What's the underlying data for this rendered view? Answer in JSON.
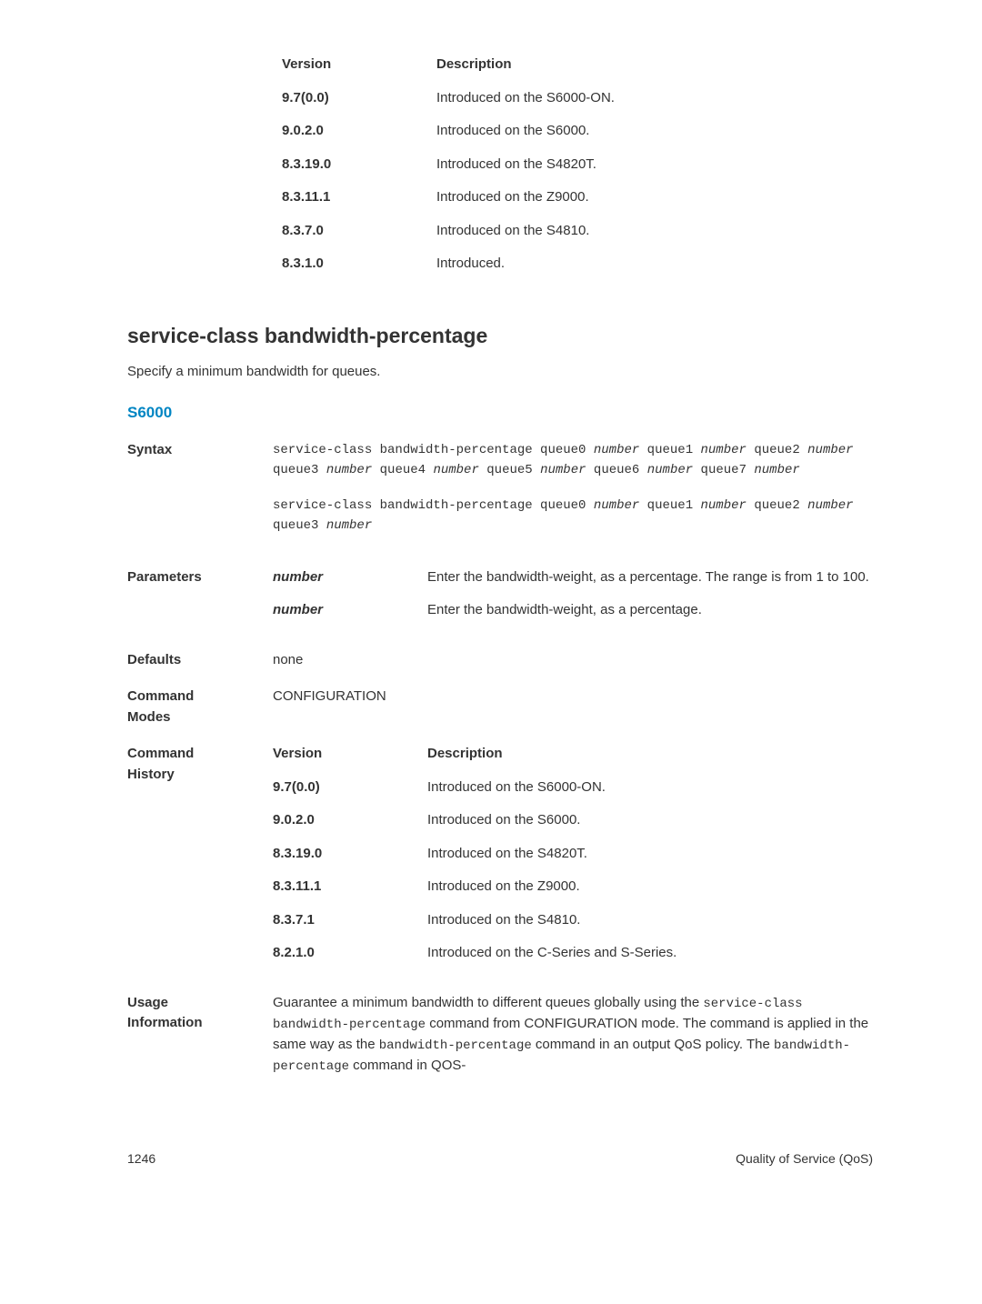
{
  "top_version_table": {
    "header": {
      "col1": "Version",
      "col2": "Description"
    },
    "rows": [
      {
        "version": "9.7(0.0)",
        "desc": "Introduced on the S6000-ON."
      },
      {
        "version": "9.0.2.0",
        "desc": "Introduced on the S6000."
      },
      {
        "version": "8.3.19.0",
        "desc": "Introduced on the S4820T."
      },
      {
        "version": "8.3.11.1",
        "desc": "Introduced on the Z9000."
      },
      {
        "version": "8.3.7.0",
        "desc": "Introduced on the S4810."
      },
      {
        "version": "8.3.1.0",
        "desc": "Introduced."
      }
    ]
  },
  "section": {
    "title": "service-class bandwidth-percentage",
    "desc": "Specify a minimum bandwidth for queues.",
    "subhead": "S6000"
  },
  "labels": {
    "syntax": "Syntax",
    "parameters": "Parameters",
    "defaults": "Defaults",
    "command_modes": "Command Modes",
    "command_history": "Command History",
    "usage_information": "Usage Information"
  },
  "syntax": {
    "block1_parts": [
      {
        "t": "service-class bandwidth-percentage queue0 ",
        "i": false
      },
      {
        "t": "number",
        "i": true
      },
      {
        "t": " queue1 ",
        "i": false
      },
      {
        "t": "number",
        "i": true
      },
      {
        "t": " queue2 ",
        "i": false
      },
      {
        "t": "number",
        "i": true
      },
      {
        "t": " queue3 ",
        "i": false
      },
      {
        "t": "number",
        "i": true
      },
      {
        "t": " queue4 ",
        "i": false
      },
      {
        "t": "number",
        "i": true
      },
      {
        "t": " queue5 ",
        "i": false
      },
      {
        "t": "number",
        "i": true
      },
      {
        "t": " queue6 ",
        "i": false
      },
      {
        "t": "number",
        "i": true
      },
      {
        "t": " queue7 ",
        "i": false
      },
      {
        "t": "number",
        "i": true
      }
    ],
    "block2_parts": [
      {
        "t": "service-class bandwidth-percentage queue0 ",
        "i": false
      },
      {
        "t": "number",
        "i": true
      },
      {
        "t": " queue1 ",
        "i": false
      },
      {
        "t": "number",
        "i": true
      },
      {
        "t": " queue2 ",
        "i": false
      },
      {
        "t": "number",
        "i": true
      },
      {
        "t": " queue3 ",
        "i": false
      },
      {
        "t": "number",
        "i": true
      }
    ]
  },
  "parameters": [
    {
      "name": "number",
      "desc": "Enter the bandwidth-weight, as a percentage. The range is from 1 to 100."
    },
    {
      "name": "number",
      "desc": "Enter the bandwidth-weight, as a percentage."
    }
  ],
  "defaults": "none",
  "command_modes": "CONFIGURATION",
  "cmd_history": {
    "header": {
      "col1": "Version",
      "col2": "Description"
    },
    "rows": [
      {
        "version": "9.7(0.0)",
        "desc": "Introduced on the S6000-ON."
      },
      {
        "version": "9.0.2.0",
        "desc": "Introduced on the S6000."
      },
      {
        "version": "8.3.19.0",
        "desc": "Introduced on the S4820T."
      },
      {
        "version": "8.3.11.1",
        "desc": "Introduced on the Z9000."
      },
      {
        "version": "8.3.7.1",
        "desc": "Introduced on the S4810."
      },
      {
        "version": "8.2.1.0",
        "desc": "Introduced on the C-Series and S-Series."
      }
    ]
  },
  "usage_parts": [
    {
      "t": "Guarantee a minimum bandwidth to different queues globally using the ",
      "c": false
    },
    {
      "t": "service-class bandwidth-percentage",
      "c": true
    },
    {
      "t": " command from CONFIGURATION mode. The command is applied in the same way as the ",
      "c": false
    },
    {
      "t": "bandwidth-percentage",
      "c": true
    },
    {
      "t": " command in an output QoS policy. The ",
      "c": false
    },
    {
      "t": "bandwidth-percentage",
      "c": true
    },
    {
      "t": " command in QOS-",
      "c": false
    }
  ],
  "footer": {
    "page": "1246",
    "section": "Quality of Service (QoS)"
  }
}
